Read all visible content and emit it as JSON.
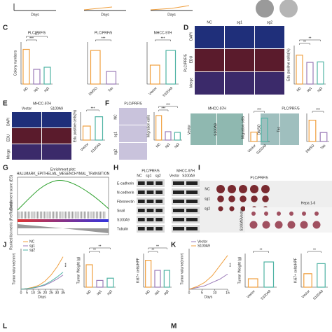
{
  "letters": [
    "C",
    "D",
    "E",
    "F",
    "G",
    "H",
    "I",
    "J",
    "K",
    "L",
    "M"
  ],
  "top_days": [
    "Days",
    "Days",
    "Days"
  ],
  "D_images": {
    "cell": "PLC/PRF/5",
    "cols": [
      "NC",
      "sg1",
      "sg2"
    ],
    "rows": [
      "DAPI",
      "EDU",
      "Merge"
    ]
  },
  "E_images": {
    "title": "MHCC-97H",
    "cols": [
      "Vector",
      "S100A9"
    ],
    "rows": [
      "DAPI",
      "EDU",
      "Merge"
    ]
  },
  "F_images": {
    "plc_title": "PLC/PRF/5",
    "plc_rows": [
      "NC",
      "sg1",
      "sg2"
    ],
    "mhcc_title": "MHCC-97H",
    "mhcc_cols": [
      "Vector",
      "S100A9"
    ],
    "plc2_title": "PLC/PRF/5",
    "plc2_cols": [
      "DMSO",
      "Tas"
    ]
  },
  "G": {
    "title": "Enrichment plot:",
    "subtitle": "HALLMARK_EPITHELIAL_MESENCHYMAL_TRANSITION",
    "ylabel_top": "Enrichment score (ES)",
    "ylabel_bottom": "Ranked list metric (PreRanked)"
  },
  "H": {
    "groups": [
      {
        "name": "PLC/PRF/5",
        "lanes": [
          "NC",
          "sg1",
          "sg2"
        ]
      },
      {
        "name": "MHCC-97H",
        "lanes": [
          "Vector",
          "S100A9"
        ]
      }
    ],
    "proteins": [
      "E-cadherin",
      "N-cedherin",
      "Fibronectin",
      "Snail",
      "S100A9",
      "Tubulin"
    ]
  },
  "I": {
    "title": "PLC/PRF/5",
    "rows": [
      "NC",
      "sg1",
      "sg2"
    ],
    "title2": "Hepa 1-6",
    "rows2": [
      "Vector",
      "S100A9"
    ]
  },
  "bar_charts": [
    {
      "title": "PLC/PRF/5",
      "ylabel": "Colony numbers",
      "categories": [
        "NC",
        "sg1",
        "sg2"
      ],
      "values": [
        330,
        140,
        160
      ],
      "colors": [
        "#f0a040",
        "#9b7bb8",
        "#4fb3a4"
      ],
      "ylim": [
        0,
        400
      ],
      "sig": [
        "***",
        "***"
      ]
    },
    {
      "title": "PLC/PRF/5",
      "categories": [
        "DMSO",
        "Tas"
      ],
      "values": [
        160,
        60
      ],
      "colors": [
        "#f0a040",
        "#9b7bb8"
      ],
      "ylim": [
        0,
        200
      ],
      "sig": [
        "***"
      ]
    },
    {
      "title": "MHCC-97H",
      "categories": [
        "Vector",
        "S100A9"
      ],
      "values": [
        90,
        160
      ],
      "colors": [
        "#f0a040",
        "#4fb3a4"
      ],
      "ylim": [
        0,
        200
      ],
      "sig": [
        "***"
      ]
    },
    {
      "ylabel": "Edu positive cells(%)",
      "categories": [
        "NC",
        "sg1",
        "sg2"
      ],
      "values": [
        60,
        45,
        46
      ],
      "colors": [
        "#f0a040",
        "#9b7bb8",
        "#4fb3a4"
      ],
      "ylim": [
        0,
        80
      ],
      "sig": [
        "**",
        "**"
      ]
    },
    {
      "ylabel": "Edu positive cells(%)",
      "categories": [
        "Vector",
        "S100A9"
      ],
      "values": [
        30,
        50
      ],
      "colors": [
        "#f0a040",
        "#4fb3a4"
      ],
      "ylim": [
        0,
        60
      ],
      "sig": [
        "***"
      ]
    },
    {
      "ylabel": "Migration cells",
      "categories": [
        "NC",
        "sg1",
        "sg2"
      ],
      "values": [
        350,
        120,
        110
      ],
      "colors": [
        "#f0a040",
        "#9b7bb8",
        "#4fb3a4"
      ],
      "ylim": [
        0,
        400
      ],
      "sig": [
        "***",
        "***"
      ]
    },
    {
      "ylabel": "Migration cells",
      "categories": [
        "Vector",
        "S100A9"
      ],
      "values": [
        100,
        250
      ],
      "colors": [
        "#f0a040",
        "#4fb3a4"
      ],
      "ylim": [
        0,
        300
      ],
      "sig": [
        "***"
      ]
    },
    {
      "categories": [
        "DMSO",
        "Tas"
      ],
      "values": [
        380,
        160
      ],
      "colors": [
        "#f0a040",
        "#9b7bb8"
      ],
      "ylim": [
        0,
        500
      ],
      "sig": [
        "***"
      ]
    },
    {
      "ylabel": "Tumor Weight (g)",
      "categories": [
        "NC",
        "sg1",
        "sg2"
      ],
      "values": [
        1.0,
        0.3,
        0.4
      ],
      "colors": [
        "#f0a040",
        "#9b7bb8",
        "#4fb3a4"
      ],
      "ylim": [
        0,
        1.5
      ],
      "sig": [
        "**",
        "**"
      ]
    },
    {
      "ylabel": "Ki67+ cells/HPF",
      "categories": [
        "NC",
        "sg1",
        "sg2"
      ],
      "values": [
        80,
        50,
        50
      ],
      "colors": [
        "#f0a040",
        "#9b7bb8",
        "#4fb3a4"
      ],
      "ylim": [
        0,
        100
      ],
      "sig": [
        "**",
        "**"
      ]
    },
    {
      "ylabel": "Tumor Weight (g)",
      "categories": [
        "Vector",
        "S100A9"
      ],
      "values": [
        0.3,
        0.9
      ],
      "colors": [
        "#f0a040",
        "#4fb3a4"
      ],
      "ylim": [
        0,
        1.2
      ],
      "sig": [
        "**"
      ]
    },
    {
      "ylabel": "Ki67+ cells/HPF",
      "categories": [
        "Vector",
        "S100A9"
      ],
      "values": [
        80,
        140
      ],
      "colors": [
        "#f0a040",
        "#4fb3a4"
      ],
      "ylim": [
        0,
        200
      ],
      "sig": [
        "**"
      ]
    }
  ],
  "line_charts": [
    {
      "ylabel": "Tumor volume(mm³)",
      "xlabel": "Days",
      "x": [
        0,
        5,
        10,
        15,
        20,
        25,
        30,
        35
      ],
      "xlim": [
        0,
        35
      ],
      "xticks": [
        0,
        5,
        10,
        15,
        20,
        25,
        30,
        35
      ],
      "ylim": [
        0,
        1000
      ],
      "sig": "***",
      "series": [
        {
          "name": "NC",
          "color": "#f0a040",
          "values": [
            0,
            20,
            50,
            100,
            200,
            350,
            550,
            800
          ]
        },
        {
          "name": "sg1",
          "color": "#9b7bb8",
          "values": [
            0,
            15,
            30,
            60,
            100,
            170,
            250,
            350
          ]
        },
        {
          "name": "sg2",
          "color": "#4fb3a4",
          "values": [
            0,
            15,
            35,
            70,
            120,
            200,
            300,
            420
          ]
        }
      ]
    },
    {
      "ylabel": "Tumor volume(mm³)",
      "xlabel": "Days",
      "x": [
        0,
        3,
        6,
        9,
        12,
        15
      ],
      "xlim": [
        0,
        15
      ],
      "xticks": [
        0,
        5,
        10,
        15
      ],
      "ylim": [
        0,
        1200
      ],
      "sig": "***",
      "series": [
        {
          "name": "Vector",
          "color": "#9b7bb8",
          "values": [
            0,
            50,
            100,
            200,
            300,
            450
          ]
        },
        {
          "name": "S100A9",
          "color": "#f0a040",
          "values": [
            0,
            80,
            200,
            400,
            700,
            1000
          ]
        }
      ]
    }
  ]
}
